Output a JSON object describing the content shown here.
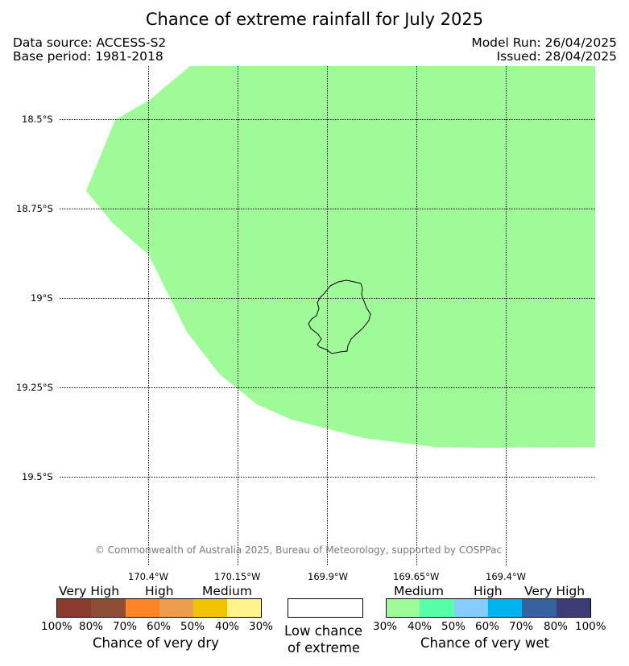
{
  "title": "Chance of extreme rainfall for July 2025",
  "header": {
    "data_source": "Data source: ACCESS-S2",
    "base_period": "Base period: 1981-2018",
    "model_run": "Model Run: 26/04/2025",
    "issued": "Issued: 28/04/2025"
  },
  "map": {
    "lat_labels": [
      "18.5°S",
      "18.75°S",
      "19°S",
      "19.25°S",
      "19.5°S"
    ],
    "lon_labels": [
      "170.4°W",
      "170.15°W",
      "169.9°W",
      "169.65°W",
      "169.4°W"
    ],
    "region_category": "Medium chance of very wet",
    "region_color": "#9efb98",
    "island_outline_color": "#000000",
    "credit": "© Commonwealth of Australia 2025, Bureau of Meteorology, supported by COSPPac"
  },
  "legend": {
    "dry": {
      "categories": [
        "Very High",
        "High",
        "Medium"
      ],
      "colors": [
        "#8b3a2f",
        "#8e4e36",
        "#ff8427",
        "#ec9d4d",
        "#f0c500",
        "#fff48b"
      ],
      "ticks": [
        "100%",
        "80%",
        "70%",
        "60%",
        "50%",
        "40%",
        "30%"
      ],
      "caption": "Chance of very dry"
    },
    "low": {
      "color": "#ffffff",
      "caption_line1": "Low chance",
      "caption_line2": "of extreme"
    },
    "wet": {
      "categories": [
        "Medium",
        "High",
        "Very High"
      ],
      "colors": [
        "#9efb98",
        "#57fea8",
        "#87ccff",
        "#00b4f0",
        "#36629f",
        "#3d3c77"
      ],
      "ticks": [
        "30%",
        "40%",
        "50%",
        "60%",
        "70%",
        "80%",
        "100%"
      ],
      "caption": "Chance of very wet"
    }
  }
}
